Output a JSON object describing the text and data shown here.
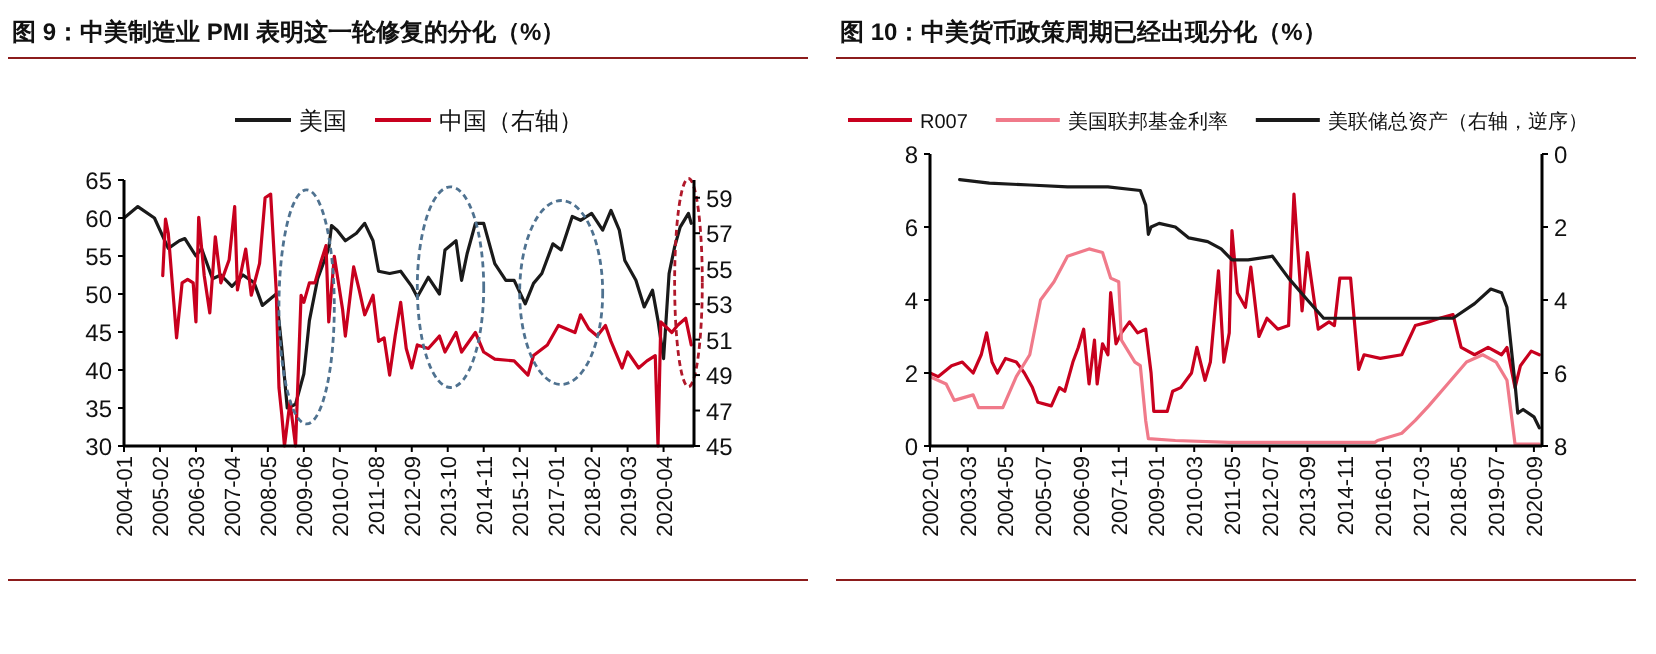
{
  "chart_data": [
    {
      "type": "line",
      "title": "图 9：中美制造业 PMI 表明这一轮修复的分化（%）",
      "legend": "top",
      "xlim": [
        "2004-01",
        "2021-03"
      ],
      "xticks": [
        "2004-01",
        "2005-02",
        "2006-03",
        "2007-04",
        "2008-05",
        "2009-06",
        "2010-07",
        "2011-08",
        "2012-09",
        "2013-10",
        "2014-11",
        "2015-12",
        "2017-01",
        "2018-02",
        "2019-03",
        "2020-04"
      ],
      "ylim": [
        30,
        65
      ],
      "yticks": [
        30,
        35,
        40,
        45,
        50,
        55,
        60,
        65
      ],
      "y2lim": [
        45,
        60
      ],
      "y2ticks": [
        45,
        47,
        49,
        51,
        53,
        55,
        57,
        59
      ],
      "series": [
        {
          "name": "美国",
          "color": "#1a1a1a",
          "x": [
            "2004-01",
            "2004-06",
            "2004-12",
            "2005-05",
            "2005-09",
            "2005-11",
            "2006-03",
            "2006-05",
            "2006-09",
            "2006-12",
            "2007-04",
            "2007-08",
            "2007-12",
            "2008-03",
            "2008-08",
            "2008-10",
            "2008-12",
            "2009-03",
            "2009-06",
            "2009-08",
            "2009-11",
            "2010-03",
            "2010-04",
            "2010-06",
            "2010-09",
            "2011-01",
            "2011-04",
            "2011-07",
            "2011-09",
            "2012-01",
            "2012-05",
            "2012-09",
            "2012-11",
            "2013-03",
            "2013-07",
            "2013-09",
            "2014-01",
            "2014-03",
            "2014-05",
            "2014-08",
            "2014-11",
            "2015-03",
            "2015-07",
            "2015-10",
            "2016-02",
            "2016-05",
            "2016-08",
            "2016-12",
            "2017-03",
            "2017-07",
            "2017-10",
            "2018-02",
            "2018-06",
            "2018-09",
            "2018-12",
            "2019-02",
            "2019-06",
            "2019-09",
            "2019-12",
            "2020-02",
            "2020-04",
            "2020-06",
            "2020-08",
            "2020-10",
            "2021-01",
            "2021-02"
          ],
          "values": [
            60,
            61.5,
            60,
            56,
            57,
            57.3,
            55,
            56,
            52,
            52.5,
            51,
            52.5,
            51.5,
            48.5,
            50,
            43,
            35,
            35.5,
            39.5,
            46.5,
            52,
            56,
            59,
            58.4,
            57,
            58,
            59.3,
            57,
            53,
            52.7,
            53,
            51,
            49.6,
            52.2,
            50,
            55.8,
            57,
            51.8,
            55.3,
            59.3,
            59.3,
            54,
            51.8,
            51.8,
            48.7,
            51.4,
            52.7,
            56.6,
            55.8,
            60.2,
            59.7,
            60.6,
            58.4,
            61,
            58.4,
            54.4,
            51.8,
            48.3,
            50.5,
            46.5,
            41.5,
            52.7,
            56.2,
            58.8,
            60.6,
            59.3
          ]
        },
        {
          "name": "中国（右轴）",
          "color": "#c8001e",
          "axis": "y2",
          "x": [
            "2005-03",
            "2005-04",
            "2005-05",
            "2005-07",
            "2005-08",
            "2005-10",
            "2005-12",
            "2006-02",
            "2006-03",
            "2006-04",
            "2006-06",
            "2006-08",
            "2006-10",
            "2006-12",
            "2007-03",
            "2007-05",
            "2007-06",
            "2007-09",
            "2007-11",
            "2008-02",
            "2008-04",
            "2008-06",
            "2008-08",
            "2008-09",
            "2008-10",
            "2008-11",
            "2009-01",
            "2009-03",
            "2009-05",
            "2009-06",
            "2009-08",
            "2009-10",
            "2009-12",
            "2010-02",
            "2010-03",
            "2010-05",
            "2010-08",
            "2010-09",
            "2010-12",
            "2011-02",
            "2011-04",
            "2011-07",
            "2011-09",
            "2011-11",
            "2012-01",
            "2012-03",
            "2012-05",
            "2012-07",
            "2012-09",
            "2012-11",
            "2013-03",
            "2013-07",
            "2013-09",
            "2014-01",
            "2014-03",
            "2014-08",
            "2014-11",
            "2015-03",
            "2015-10",
            "2016-03",
            "2016-05",
            "2016-10",
            "2017-02",
            "2017-08",
            "2017-10",
            "2018-01",
            "2018-04",
            "2018-07",
            "2018-09",
            "2019-01",
            "2019-03",
            "2019-07",
            "2019-10",
            "2020-01",
            "2020-02",
            "2020-03",
            "2020-07",
            "2020-09",
            "2020-12",
            "2021-02"
          ],
          "values": [
            54.6,
            57.8,
            57,
            53.1,
            51.1,
            54.2,
            54.4,
            54.2,
            52,
            57.9,
            54.6,
            52.5,
            56.8,
            54.2,
            55.5,
            58.5,
            53.8,
            56.1,
            53.5,
            55.3,
            59,
            59.2,
            53.8,
            48.3,
            46.8,
            45,
            47.5,
            45,
            53.5,
            53.1,
            54.2,
            54.2,
            55.3,
            56.3,
            52,
            55.7,
            52.7,
            51.2,
            55.1,
            53.8,
            52.4,
            53.5,
            50.9,
            51.1,
            49,
            51.2,
            53.1,
            50.5,
            49.4,
            50.7,
            50.5,
            51.2,
            50.3,
            51.4,
            50.3,
            51.4,
            50.3,
            49.9,
            49.8,
            49,
            50.1,
            50.7,
            51.8,
            51.4,
            52.4,
            51.6,
            51.2,
            51.8,
            50.9,
            49.4,
            50.3,
            49.4,
            49.8,
            50.1,
            45,
            52,
            51.4,
            51.8,
            52.2,
            50.7
          ]
        }
      ]
    },
    {
      "type": "line",
      "title": "图 10：中美货币政策周期已经出现分化（%）",
      "legend": "top",
      "xlim": [
        "2002-01",
        "2020-12"
      ],
      "xticks": [
        "2002-01",
        "2003-03",
        "2004-05",
        "2005-07",
        "2006-09",
        "2007-11",
        "2009-01",
        "2010-03",
        "2011-05",
        "2012-07",
        "2013-09",
        "2014-11",
        "2016-01",
        "2017-03",
        "2018-05",
        "2019-07",
        "2020-09"
      ],
      "ylim": [
        0,
        8
      ],
      "yticks": [
        0,
        2,
        4,
        6,
        8
      ],
      "y2lim": [
        8,
        0
      ],
      "y2ticks": [
        0,
        2,
        4,
        6,
        8
      ],
      "series": [
        {
          "name": "R007",
          "color": "#c8001e",
          "x": [
            "2002-01",
            "2002-04",
            "2002-09",
            "2003-01",
            "2003-05",
            "2003-08",
            "2003-10",
            "2003-12",
            "2004-02",
            "2004-05",
            "2004-09",
            "2004-12",
            "2005-03",
            "2005-05",
            "2005-10",
            "2006-01",
            "2006-03",
            "2006-06",
            "2006-08",
            "2006-10",
            "2006-12",
            "2007-02",
            "2007-03",
            "2007-05",
            "2007-07",
            "2007-08",
            "2007-10",
            "2007-12",
            "2008-03",
            "2008-06",
            "2008-09",
            "2008-11",
            "2008-12",
            "2009-05",
            "2009-07",
            "2009-10",
            "2010-02",
            "2010-04",
            "2010-07",
            "2010-09",
            "2010-12",
            "2011-02",
            "2011-04",
            "2011-05",
            "2011-07",
            "2011-10",
            "2011-12",
            "2012-03",
            "2012-06",
            "2012-10",
            "2013-02",
            "2013-04",
            "2013-07",
            "2013-09",
            "2014-01",
            "2014-05",
            "2014-07",
            "2014-09",
            "2015-01",
            "2015-04",
            "2015-06",
            "2015-12",
            "2016-08",
            "2017-01",
            "2017-06",
            "2017-10",
            "2018-03",
            "2018-06",
            "2018-11",
            "2019-04",
            "2019-09",
            "2019-11",
            "2020-02",
            "2020-04",
            "2020-08",
            "2020-11"
          ],
          "values": [
            2.0,
            1.9,
            2.2,
            2.3,
            2.0,
            2.5,
            3.1,
            2.3,
            2.0,
            2.4,
            2.3,
            2.0,
            1.6,
            1.2,
            1.1,
            1.6,
            1.5,
            2.3,
            2.7,
            3.2,
            1.7,
            2.9,
            1.7,
            2.8,
            2.5,
            4.2,
            2.8,
            3.1,
            3.4,
            3.1,
            3.2,
            2.0,
            0.95,
            0.95,
            1.5,
            1.6,
            2.0,
            2.7,
            1.8,
            2.3,
            4.8,
            2.3,
            3.1,
            5.9,
            4.2,
            3.8,
            4.9,
            3.0,
            3.5,
            3.2,
            3.3,
            6.9,
            3.7,
            5.3,
            3.2,
            3.4,
            3.3,
            4.6,
            4.6,
            2.1,
            2.5,
            2.4,
            2.5,
            3.3,
            3.4,
            3.5,
            3.6,
            2.7,
            2.5,
            2.7,
            2.5,
            2.7,
            1.6,
            2.2,
            2.6,
            2.5
          ]
        },
        {
          "name": "美国联邦基金利率",
          "color": "#f07a8a",
          "x": [
            "2002-01",
            "2002-07",
            "2002-10",
            "2003-05",
            "2003-07",
            "2004-04",
            "2004-09",
            "2005-02",
            "2005-06",
            "2005-11",
            "2006-04",
            "2006-12",
            "2007-05",
            "2007-08",
            "2007-11",
            "2007-12",
            "2008-05",
            "2008-07",
            "2008-09",
            "2008-10",
            "2009-08",
            "2011-04",
            "2015-10",
            "2015-11",
            "2016-08",
            "2017-01",
            "2017-06",
            "2018-01",
            "2018-08",
            "2019-02",
            "2019-07",
            "2019-11",
            "2020-02",
            "2020-11"
          ],
          "values": [
            1.9,
            1.7,
            1.25,
            1.4,
            1.05,
            1.05,
            1.9,
            2.5,
            4.0,
            4.5,
            5.2,
            5.4,
            5.3,
            4.6,
            4.5,
            2.9,
            2.3,
            2.2,
            0.7,
            0.2,
            0.15,
            0.1,
            0.1,
            0.15,
            0.35,
            0.7,
            1.1,
            1.7,
            2.3,
            2.5,
            2.3,
            1.8,
            0.05,
            0.05
          ]
        },
        {
          "name": "美联储总资产（右轴，逆序）",
          "color": "#1a1a1a",
          "axis": "y2",
          "x": [
            "2002-12",
            "2003-11",
            "2005-02",
            "2006-04",
            "2007-07",
            "2008-07",
            "2008-09",
            "2008-10",
            "2008-11",
            "2009-02",
            "2009-08",
            "2010-01",
            "2010-08",
            "2011-01",
            "2011-05",
            "2011-11",
            "2012-08",
            "2013-02",
            "2013-09",
            "2014-03",
            "2014-09",
            "2018-03",
            "2018-11",
            "2019-05",
            "2019-09",
            "2019-11",
            "2020-02",
            "2020-03",
            "2020-05",
            "2020-09",
            "2020-11"
          ],
          "values": [
            0.7,
            0.8,
            0.85,
            0.9,
            0.9,
            1.0,
            1.4,
            2.2,
            2.0,
            1.9,
            2.0,
            2.3,
            2.4,
            2.6,
            2.9,
            2.9,
            2.8,
            3.4,
            4.0,
            4.5,
            4.5,
            4.5,
            4.1,
            3.7,
            3.8,
            4.2,
            6.3,
            7.1,
            7.0,
            7.2,
            7.5
          ]
        }
      ]
    }
  ]
}
